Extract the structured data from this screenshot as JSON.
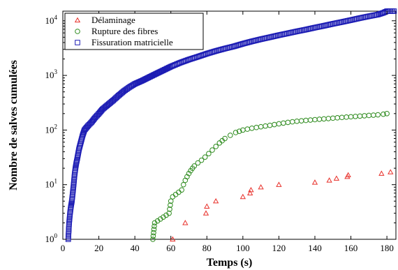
{
  "chart_data": {
    "type": "scatter",
    "title": "",
    "xlabel": "Temps (s)",
    "ylabel": "Nombre de salves cumulées",
    "xlim": [
      0,
      185
    ],
    "ylim": [
      1,
      15000
    ],
    "yscale": "log",
    "grid": false,
    "legend_position": "top-left",
    "x_ticks": [
      "0",
      "20",
      "40",
      "60",
      "80",
      "100",
      "120",
      "140",
      "160",
      "180"
    ],
    "y_ticks": [
      {
        "base": "10",
        "exp": "0",
        "value": 1
      },
      {
        "base": "10",
        "exp": "1",
        "value": 10
      },
      {
        "base": "10",
        "exp": "2",
        "value": 100
      },
      {
        "base": "10",
        "exp": "3",
        "value": 1000
      },
      {
        "base": "10",
        "exp": "4",
        "value": 10000
      }
    ],
    "series": [
      {
        "name": "Délaminage",
        "marker": "triangle",
        "color": "#e8302a",
        "x": [
          61,
          68,
          79.5,
          80,
          85,
          100,
          104,
          104.5,
          110,
          120,
          140,
          148,
          152,
          158,
          158.5,
          177,
          182
        ],
        "y": [
          1,
          2,
          3,
          4,
          5,
          6,
          7,
          8,
          9,
          10,
          11,
          12,
          13,
          14,
          15,
          16,
          17
        ]
      },
      {
        "name": "Rupture des fibres",
        "marker": "circle",
        "color": "#2e8b1e",
        "x": [
          50,
          51,
          59,
          60,
          61,
          66,
          67,
          68,
          69,
          70,
          71,
          72,
          73,
          75,
          77,
          79,
          81,
          83,
          85,
          87,
          90,
          93,
          96,
          100,
          105,
          110,
          115,
          120,
          125,
          130,
          135,
          140,
          145,
          150,
          155,
          160,
          165,
          170,
          175,
          178,
          180
        ],
        "y": [
          1,
          2,
          3,
          5,
          6,
          8,
          10,
          12,
          14,
          16,
          18,
          20,
          22,
          25,
          28,
          32,
          37,
          43,
          50,
          58,
          70,
          80,
          90,
          100,
          108,
          115,
          122,
          130,
          138,
          145,
          150,
          155,
          160,
          165,
          170,
          175,
          180,
          185,
          190,
          195,
          200
        ]
      },
      {
        "name": "Fissuration matricielle",
        "marker": "square",
        "color": "#1c1cb4",
        "x": [
          3,
          3.5,
          4,
          4.5,
          5,
          5.5,
          6,
          6.5,
          7,
          7.5,
          8,
          9,
          10,
          11,
          12,
          14,
          16,
          18,
          20,
          22,
          25,
          28,
          31,
          34,
          37,
          40,
          44,
          48,
          52,
          56,
          60,
          65,
          70,
          75,
          80,
          85,
          90,
          95,
          100,
          105,
          110,
          115,
          120,
          125,
          130,
          135,
          140,
          145,
          150,
          155,
          160,
          165,
          170,
          175,
          178,
          180,
          182,
          184
        ],
        "y": [
          1,
          2,
          3,
          4,
          5,
          7,
          10,
          15,
          20,
          25,
          30,
          45,
          60,
          80,
          100,
          120,
          140,
          170,
          200,
          240,
          290,
          350,
          430,
          520,
          610,
          700,
          800,
          930,
          1080,
          1250,
          1450,
          1700,
          1950,
          2200,
          2500,
          2800,
          3100,
          3400,
          3800,
          4200,
          4600,
          5000,
          5450,
          5900,
          6400,
          6900,
          7500,
          8100,
          8800,
          9500,
          10300,
          11200,
          12100,
          13000,
          14000,
          15000,
          15000,
          15000
        ]
      }
    ]
  }
}
